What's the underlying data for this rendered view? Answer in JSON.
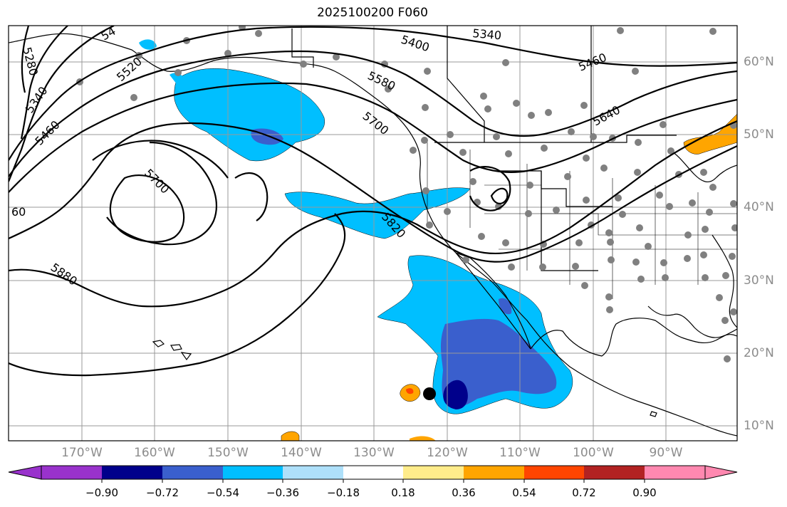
{
  "title": "2025100200 F060",
  "lat_labels": [
    "60°N",
    "50°N",
    "40°N",
    "30°N",
    "20°N",
    "10°N"
  ],
  "lon_labels": [
    "170°W",
    "160°W",
    "150°W",
    "140°W",
    "130°W",
    "120°W",
    "110°W",
    "100°W",
    "90°W"
  ],
  "contour_labels": [
    "5280",
    "5340",
    "5400",
    "5460",
    "5520",
    "5580",
    "5640",
    "5700",
    "5820",
    "5880",
    "60",
    "5700",
    "54",
    "5460",
    "5340"
  ],
  "colorbar": {
    "tick_labels": [
      "−0.90",
      "−0.72",
      "−0.54",
      "−0.36",
      "−0.18",
      "0.18",
      "0.36",
      "0.54",
      "0.72",
      "0.90"
    ],
    "colors": [
      "#9932cc",
      "#00008b",
      "#3a5fcd",
      "#00bfff",
      "#aee0fa",
      "#ffffff",
      "#ffec8b",
      "#ffa500",
      "#ff4500",
      "#b22222",
      "#ff88b0"
    ]
  },
  "fill_colors": {
    "light_blue": "#00bfff",
    "medium_blue": "#3a5fcd",
    "dark_blue": "#00008b",
    "orange": "#ffa500",
    "red_orange": "#ff4500"
  }
}
